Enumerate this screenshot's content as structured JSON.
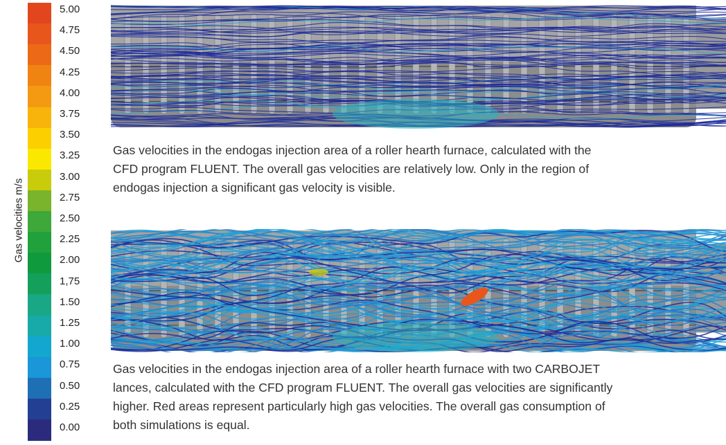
{
  "legend": {
    "title": "Gas velocities m/s",
    "items": [
      {
        "label": "5.00",
        "color": "#e2461e"
      },
      {
        "label": "4.75",
        "color": "#e8561c"
      },
      {
        "label": "4.50",
        "color": "#ec6a17"
      },
      {
        "label": "4.25",
        "color": "#f08413"
      },
      {
        "label": "4.00",
        "color": "#f39a12"
      },
      {
        "label": "3.75",
        "color": "#f8b40a"
      },
      {
        "label": "3.50",
        "color": "#fcd000"
      },
      {
        "label": "3.25",
        "color": "#fbe800"
      },
      {
        "label": "3.00",
        "color": "#c8cc0a"
      },
      {
        "label": "2.75",
        "color": "#7ab32c"
      },
      {
        "label": "2.50",
        "color": "#3ea83a"
      },
      {
        "label": "2.25",
        "color": "#21a13c"
      },
      {
        "label": "2.00",
        "color": "#0f9a3e"
      },
      {
        "label": "1,75",
        "color": "#14a05a"
      },
      {
        "label": "1.50",
        "color": "#1aa785"
      },
      {
        "label": "1.25",
        "color": "#17aaa8"
      },
      {
        "label": "1.00",
        "color": "#13a6cf"
      },
      {
        "label": "0.75",
        "color": "#1a96d9"
      },
      {
        "label": "0.50",
        "color": "#1f6fb5"
      },
      {
        "label": "0.25",
        "color": "#233f93"
      },
      {
        "label": "0.00",
        "color": "#2b2b7e"
      }
    ]
  },
  "figures": [
    {
      "caption": [
        "Gas velocities in the endogas injection area of a roller hearth furnace, calculated with the",
        "CFD program FLUENT. The overall gas velocities are relatively low. Only in the region of",
        "endogas injection a significant gas velocity is visible."
      ]
    },
    {
      "caption": [
        "Gas velocities in the endogas injection area of a roller hearth furnace with two CARBOJET",
        "lances, calculated with the CFD program FLUENT. The overall gas velocities are significantly",
        "higher. Red areas represent particularly high gas velocities. The overall gas consumption of",
        "both simulations is equal."
      ]
    }
  ]
}
